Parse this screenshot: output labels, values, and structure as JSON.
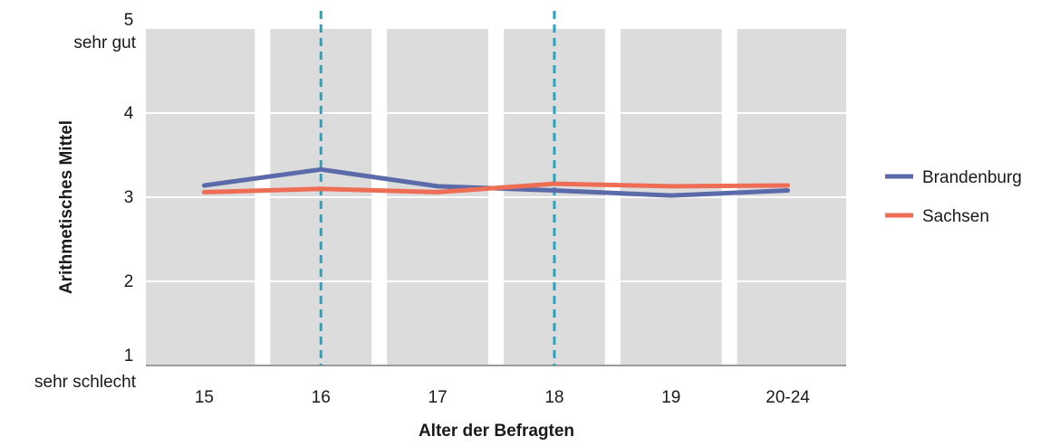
{
  "chart_data": {
    "type": "line",
    "xlabel": "Alter der Befragten",
    "ylabel": "Arithmetisches Mittel",
    "categories": [
      "15",
      "16",
      "17",
      "18",
      "19",
      "20-24"
    ],
    "ylim": [
      1,
      5
    ],
    "y_ticks": [
      {
        "value": 5,
        "label": "5",
        "sublabel": "sehr gut"
      },
      {
        "value": 4,
        "label": "4",
        "sublabel": ""
      },
      {
        "value": 3,
        "label": "3",
        "sublabel": ""
      },
      {
        "value": 2,
        "label": "2",
        "sublabel": ""
      },
      {
        "value": 1,
        "label": "1",
        "sublabel": "sehr schlecht"
      }
    ],
    "series": [
      {
        "name": "Brandenburg",
        "color": "#5b6aa8",
        "values": [
          3.14,
          3.33,
          3.13,
          3.08,
          3.02,
          3.08
        ]
      },
      {
        "name": "Sachsen",
        "color": "#ee6e55",
        "values": [
          3.06,
          3.1,
          3.06,
          3.16,
          3.13,
          3.14
        ]
      }
    ],
    "reference_lines": [
      {
        "category": "16",
        "color": "#2aa3c0",
        "style": "dashed"
      },
      {
        "category": "18",
        "color": "#2aa3c0",
        "style": "dashed"
      }
    ],
    "band_color": "#dcdcdd",
    "grid": true,
    "legend_position": "right"
  }
}
